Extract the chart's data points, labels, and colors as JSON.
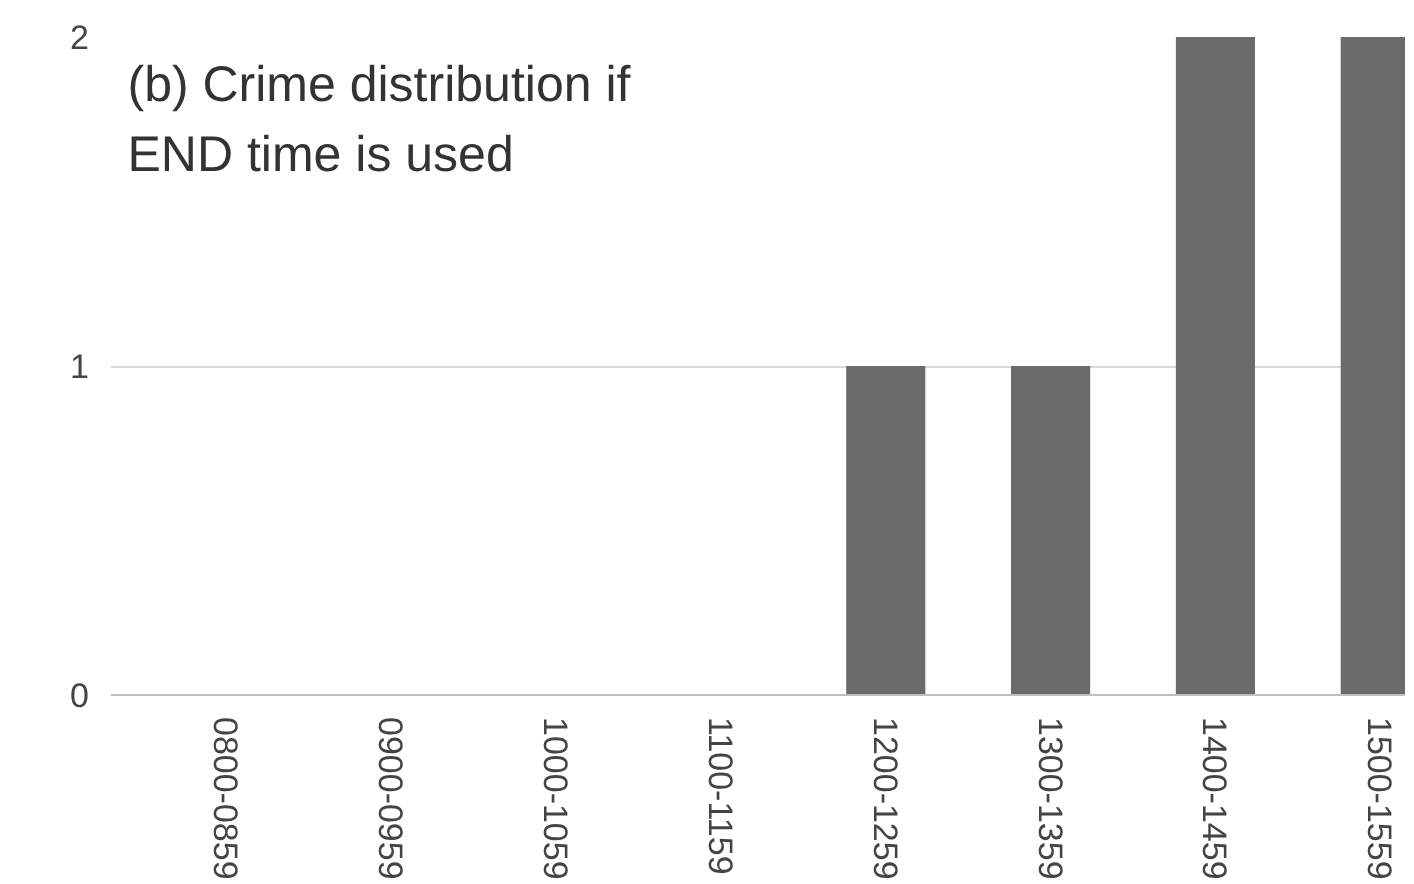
{
  "chart_data": {
    "type": "bar",
    "title": "(b) Crime distribution if\nEND time is used",
    "categories": [
      "0800-0859",
      "0900-0959",
      "1000-1059",
      "1100-1159",
      "1200-1259",
      "1300-1359",
      "1400-1459",
      "1500-1559"
    ],
    "values": [
      0,
      0,
      0,
      0,
      1,
      1,
      2,
      2
    ],
    "color": "#6b6b6b",
    "ylim": [
      0,
      2
    ],
    "yticks": [
      0,
      1,
      2
    ],
    "grid": "y"
  }
}
